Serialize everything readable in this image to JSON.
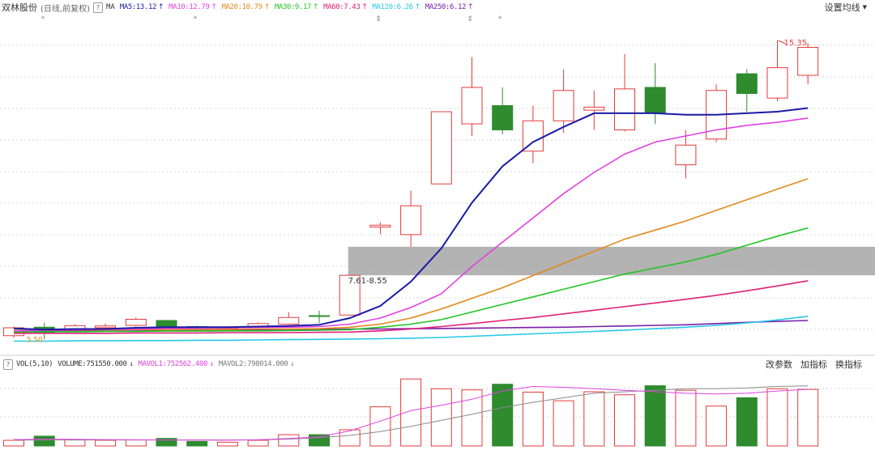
{
  "header": {
    "stock_name": "双林股份",
    "period": "(日线,前复权)",
    "help": "?",
    "ma_label": "MA",
    "ma_items": [
      {
        "name": "MA5",
        "value": "13.12",
        "arrow": "↑",
        "color": "#1a1aa6"
      },
      {
        "name": "MA10",
        "value": "12.79",
        "arrow": "↑",
        "color": "#e040e0"
      },
      {
        "name": "MA20",
        "value": "10.79",
        "arrow": "↑",
        "color": "#e08a1e"
      },
      {
        "name": "MA30",
        "value": "9.17",
        "arrow": "↑",
        "color": "#22c522"
      },
      {
        "name": "MA60",
        "value": "7.43",
        "arrow": "↑",
        "color": "#e0207a"
      },
      {
        "name": "MA120",
        "value": "6.26",
        "arrow": "↑",
        "color": "#27c8e8"
      },
      {
        "name": "MA250",
        "value": "6.12",
        "arrow": "↑",
        "color": "#7a1fa8"
      }
    ],
    "settings": "设置均线"
  },
  "annotations": {
    "peak_label": "15.35",
    "zone_label": "7.61-8.55",
    "low_label": "5.50"
  },
  "volume_header": {
    "label": "VOL(5,10)",
    "volume_name": "VOLUME",
    "volume_value": "751550.000",
    "volume_arrow": "↓",
    "mavol1_name": "MAVOL1",
    "mavol1_value": "752562.400",
    "mavol1_arrow": "↓",
    "mavol2_name": "MAVOL2",
    "mavol2_value": "798014.000",
    "mavol2_arrow": "↓",
    "buttons": [
      "改参数",
      "加指标",
      "换指标"
    ]
  },
  "colors": {
    "up": "#e33b3b",
    "down": "#2e8b2e",
    "ma5": "#1a1aa6",
    "ma10": "#e040e0",
    "ma20": "#e08a1e",
    "ma30": "#22c522",
    "ma60": "#e0207a",
    "ma120": "#27c8e8",
    "ma250": "#7a1fa8",
    "zone": "#a6a6a6"
  },
  "chart_data": {
    "type": "candlestick",
    "price_range": [
      5.0,
      16.2
    ],
    "candles": [
      {
        "o": 5.62,
        "c": 5.88,
        "h": 5.92,
        "l": 5.55
      },
      {
        "o": 5.9,
        "c": 5.72,
        "h": 6.05,
        "l": 5.5
      },
      {
        "o": 5.78,
        "c": 5.95,
        "h": 6.0,
        "l": 5.74
      },
      {
        "o": 5.88,
        "c": 5.94,
        "h": 6.02,
        "l": 5.82
      },
      {
        "o": 5.96,
        "c": 6.16,
        "h": 6.22,
        "l": 5.92
      },
      {
        "o": 6.12,
        "c": 5.9,
        "h": 6.14,
        "l": 5.86
      },
      {
        "o": 5.92,
        "c": 5.88,
        "h": 5.95,
        "l": 5.84
      },
      {
        "o": 5.86,
        "c": 5.9,
        "h": 5.94,
        "l": 5.82
      },
      {
        "o": 5.92,
        "c": 6.02,
        "h": 6.06,
        "l": 5.88
      },
      {
        "o": 6.0,
        "c": 6.22,
        "h": 6.4,
        "l": 5.98
      },
      {
        "o": 6.28,
        "c": 6.26,
        "h": 6.44,
        "l": 6.04
      },
      {
        "o": 6.3,
        "c": 7.61,
        "h": 7.61,
        "l": 6.28
      },
      {
        "o": 9.2,
        "c": 9.26,
        "h": 9.36,
        "l": 8.96
      },
      {
        "o": 8.95,
        "c": 9.9,
        "h": 10.4,
        "l": 8.55
      },
      {
        "o": 10.62,
        "c": 13.0,
        "h": 13.0,
        "l": 10.62
      },
      {
        "o": 12.6,
        "c": 13.8,
        "h": 14.8,
        "l": 12.2
      },
      {
        "o": 13.2,
        "c": 12.4,
        "h": 13.8,
        "l": 12.25
      },
      {
        "o": 11.7,
        "c": 12.7,
        "h": 13.2,
        "l": 11.3
      },
      {
        "o": 12.7,
        "c": 13.7,
        "h": 14.4,
        "l": 12.3
      },
      {
        "o": 13.05,
        "c": 13.15,
        "h": 13.7,
        "l": 12.4
      },
      {
        "o": 12.4,
        "c": 13.75,
        "h": 14.9,
        "l": 12.35
      },
      {
        "o": 13.8,
        "c": 12.95,
        "h": 14.6,
        "l": 12.6
      },
      {
        "o": 11.25,
        "c": 11.9,
        "h": 12.4,
        "l": 10.8
      },
      {
        "o": 12.1,
        "c": 13.7,
        "h": 13.9,
        "l": 12.0
      },
      {
        "o": 14.25,
        "c": 13.6,
        "h": 14.4,
        "l": 13.0
      },
      {
        "o": 13.45,
        "c": 14.45,
        "h": 15.35,
        "l": 13.35
      },
      {
        "o": 14.2,
        "c": 15.12,
        "h": 15.26,
        "l": 13.9
      }
    ],
    "ma_series": [
      {
        "name": "MA5",
        "values": [
          5.86,
          5.82,
          5.84,
          5.84,
          5.88,
          5.9,
          5.9,
          5.9,
          5.92,
          5.94,
          5.98,
          6.2,
          6.6,
          7.4,
          8.5,
          10.0,
          11.2,
          12.0,
          12.5,
          12.95,
          12.95,
          12.95,
          12.9,
          12.9,
          12.95,
          13.0,
          13.12
        ]
      },
      {
        "name": "MA10",
        "values": [
          5.78,
          5.8,
          5.82,
          5.83,
          5.84,
          5.86,
          5.87,
          5.88,
          5.89,
          5.9,
          5.92,
          6.0,
          6.2,
          6.55,
          7.0,
          7.9,
          8.7,
          9.5,
          10.3,
          11.0,
          11.6,
          12.0,
          12.2,
          12.4,
          12.55,
          12.65,
          12.79
        ]
      },
      {
        "name": "MA20",
        "values": [
          5.8,
          5.8,
          5.81,
          5.81,
          5.82,
          5.82,
          5.83,
          5.83,
          5.84,
          5.84,
          5.85,
          5.9,
          6.0,
          6.2,
          6.5,
          6.85,
          7.2,
          7.6,
          8.0,
          8.4,
          8.8,
          9.1,
          9.4,
          9.75,
          10.1,
          10.45,
          10.79
        ]
      },
      {
        "name": "MA30",
        "values": [
          5.74,
          5.75,
          5.75,
          5.76,
          5.76,
          5.77,
          5.77,
          5.78,
          5.78,
          5.79,
          5.8,
          5.82,
          5.9,
          6.0,
          6.15,
          6.4,
          6.65,
          6.9,
          7.15,
          7.4,
          7.65,
          7.85,
          8.05,
          8.3,
          8.6,
          8.9,
          9.17
        ]
      },
      {
        "name": "MA60",
        "values": [
          5.7,
          5.7,
          5.7,
          5.7,
          5.71,
          5.71,
          5.71,
          5.72,
          5.72,
          5.72,
          5.73,
          5.74,
          5.78,
          5.84,
          5.92,
          6.02,
          6.12,
          6.22,
          6.34,
          6.46,
          6.58,
          6.7,
          6.82,
          6.95,
          7.1,
          7.26,
          7.43
        ]
      },
      {
        "name": "MA120",
        "values": [
          5.44,
          5.44,
          5.45,
          5.45,
          5.46,
          5.46,
          5.47,
          5.47,
          5.48,
          5.49,
          5.5,
          5.51,
          5.52,
          5.54,
          5.56,
          5.6,
          5.64,
          5.68,
          5.72,
          5.76,
          5.8,
          5.85,
          5.9,
          5.96,
          6.04,
          6.14,
          6.26
        ]
      },
      {
        "name": "MA250",
        "values": [
          5.78,
          5.79,
          5.79,
          5.8,
          5.8,
          5.81,
          5.81,
          5.82,
          5.82,
          5.83,
          5.83,
          5.84,
          5.84,
          5.85,
          5.86,
          5.87,
          5.88,
          5.89,
          5.9,
          5.92,
          5.94,
          5.96,
          5.98,
          6.02,
          6.06,
          6.09,
          6.12
        ]
      }
    ],
    "zone": {
      "low": 7.61,
      "high": 8.55,
      "from_candle": 11
    },
    "volume": {
      "range": [
        0,
        1000000
      ],
      "values": [
        75000,
        130000,
        80000,
        75000,
        80000,
        100000,
        60000,
        50000,
        75000,
        150000,
        150000,
        215000,
        520000,
        890000,
        760000,
        745000,
        820000,
        715000,
        600000,
        720000,
        680000,
        800000,
        740000,
        530000,
        640000,
        760000,
        751550
      ],
      "mavol1": [
        85000,
        90000,
        88000,
        85000,
        82000,
        80000,
        78000,
        76000,
        82000,
        100000,
        120000,
        200000,
        330000,
        470000,
        540000,
        620000,
        730000,
        790000,
        780000,
        760000,
        740000,
        720000,
        700000,
        690000,
        700000,
        730000,
        752562
      ],
      "mavol2": [
        78000,
        80000,
        80000,
        80000,
        80000,
        80000,
        80000,
        80000,
        82000,
        90000,
        110000,
        140000,
        190000,
        260000,
        340000,
        420000,
        510000,
        580000,
        640000,
        700000,
        720000,
        740000,
        760000,
        760000,
        770000,
        790000,
        798014
      ]
    }
  }
}
